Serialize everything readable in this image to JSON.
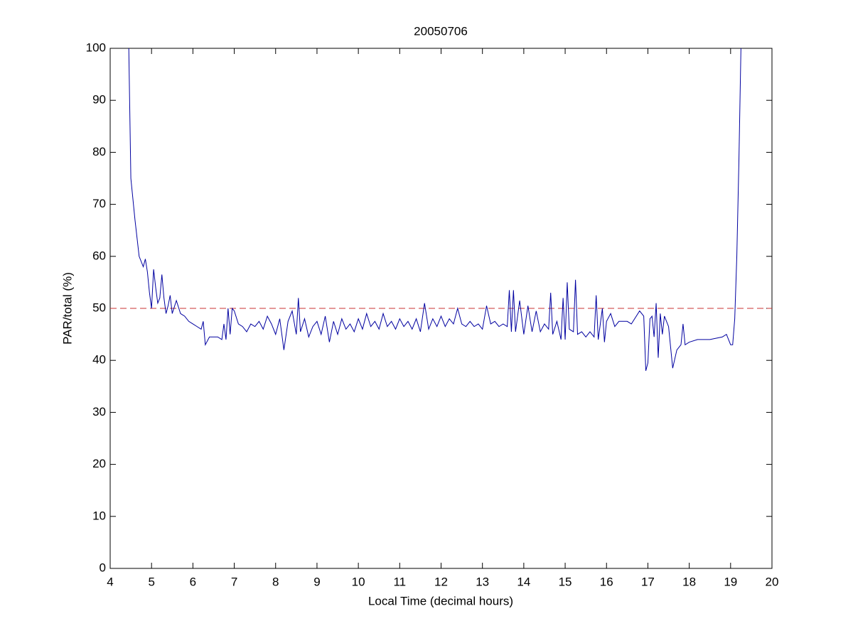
{
  "chart_data": {
    "type": "line",
    "title": "20050706",
    "x_label": "Local Time (decimal hours)",
    "y_label": "PAR/total (%)",
    "xlim": [
      4,
      20
    ],
    "xticks": [
      4,
      5,
      6,
      7,
      8,
      9,
      10,
      11,
      12,
      13,
      14,
      15,
      16,
      17,
      18,
      19,
      20
    ],
    "ylim": [
      0,
      100
    ],
    "yticks": [
      0,
      10,
      20,
      30,
      40,
      50,
      60,
      70,
      80,
      90,
      100
    ],
    "reference_lines": [
      {
        "value": 50,
        "color": "#c83232",
        "style": "dashed"
      }
    ],
    "series": [
      {
        "color": "#0000a0",
        "x": [
          4.45,
          4.5,
          4.6,
          4.7,
          4.8,
          4.85,
          4.9,
          4.95,
          5.0,
          5.05,
          5.1,
          5.15,
          5.2,
          5.25,
          5.3,
          5.35,
          5.4,
          5.45,
          5.5,
          5.6,
          5.7,
          5.8,
          5.9,
          6.0,
          6.1,
          6.2,
          6.25,
          6.3,
          6.4,
          6.6,
          6.7,
          6.75,
          6.8,
          6.85,
          6.9,
          6.95,
          7.0,
          7.1,
          7.2,
          7.3,
          7.4,
          7.5,
          7.6,
          7.7,
          7.8,
          7.9,
          8.0,
          8.1,
          8.2,
          8.3,
          8.4,
          8.5,
          8.55,
          8.6,
          8.7,
          8.8,
          8.9,
          9.0,
          9.1,
          9.2,
          9.3,
          9.4,
          9.5,
          9.6,
          9.7,
          9.8,
          9.9,
          10.0,
          10.1,
          10.2,
          10.3,
          10.4,
          10.5,
          10.6,
          10.7,
          10.8,
          10.9,
          11.0,
          11.1,
          11.2,
          11.3,
          11.4,
          11.5,
          11.6,
          11.7,
          11.8,
          11.9,
          12.0,
          12.1,
          12.2,
          12.3,
          12.4,
          12.5,
          12.6,
          12.7,
          12.8,
          12.9,
          13.0,
          13.1,
          13.2,
          13.3,
          13.4,
          13.5,
          13.6,
          13.65,
          13.7,
          13.75,
          13.8,
          13.9,
          14.0,
          14.1,
          14.2,
          14.3,
          14.4,
          14.5,
          14.6,
          14.65,
          14.7,
          14.8,
          14.9,
          14.95,
          15.0,
          15.05,
          15.1,
          15.2,
          15.25,
          15.3,
          15.4,
          15.5,
          15.6,
          15.7,
          15.75,
          15.8,
          15.9,
          15.95,
          16.0,
          16.1,
          16.2,
          16.3,
          16.5,
          16.6,
          16.8,
          16.9,
          16.95,
          17.0,
          17.05,
          17.1,
          17.15,
          17.2,
          17.25,
          17.3,
          17.35,
          17.4,
          17.5,
          17.6,
          17.7,
          17.8,
          17.85,
          17.9,
          18.0,
          18.2,
          18.5,
          18.8,
          18.9,
          19.0,
          19.05,
          19.1,
          19.15,
          19.2,
          19.25
        ],
        "values": [
          100,
          75,
          67,
          60,
          58,
          59.5,
          57,
          53,
          50,
          57.5,
          54,
          51,
          52,
          56.5,
          52,
          49,
          50.5,
          52.5,
          49,
          51.5,
          49,
          48.5,
          47.5,
          47,
          46.5,
          46,
          47.5,
          43,
          44.5,
          44.5,
          44,
          47,
          44,
          50,
          45,
          50,
          49.5,
          47,
          46.5,
          45.5,
          47,
          46.5,
          47.5,
          46,
          48.5,
          47,
          45,
          48,
          42,
          47.5,
          49.5,
          45,
          52,
          45.5,
          48,
          44.5,
          46.5,
          47.5,
          45,
          48.5,
          43.5,
          47.5,
          45,
          48,
          46,
          47,
          45.5,
          48,
          46,
          49,
          46.5,
          47.5,
          46,
          49,
          46.5,
          47.5,
          46,
          48,
          46.5,
          47.5,
          46,
          48,
          45.5,
          51,
          46,
          48,
          46.5,
          48.5,
          46.5,
          48,
          47,
          50,
          47,
          46.5,
          47.5,
          46.5,
          47,
          46,
          50.5,
          47,
          47.5,
          46.5,
          47,
          46.5,
          53.5,
          45.5,
          53.5,
          45.5,
          51.5,
          45,
          50.5,
          45.5,
          49.5,
          45.5,
          47,
          46,
          53,
          45,
          47.5,
          44,
          52,
          44,
          55,
          46,
          45.5,
          55.5,
          45,
          45.5,
          44.5,
          45.5,
          44.5,
          52.5,
          44,
          50,
          43.5,
          47.5,
          49,
          46.5,
          47.5,
          47.5,
          47,
          49.5,
          48.5,
          38,
          39.5,
          48,
          48.5,
          44.5,
          51,
          40.5,
          49,
          45,
          48.5,
          46.5,
          38.5,
          42,
          43,
          47,
          43,
          43.5,
          44,
          44,
          44.5,
          45,
          43,
          43,
          48,
          60,
          78,
          100
        ]
      }
    ]
  }
}
